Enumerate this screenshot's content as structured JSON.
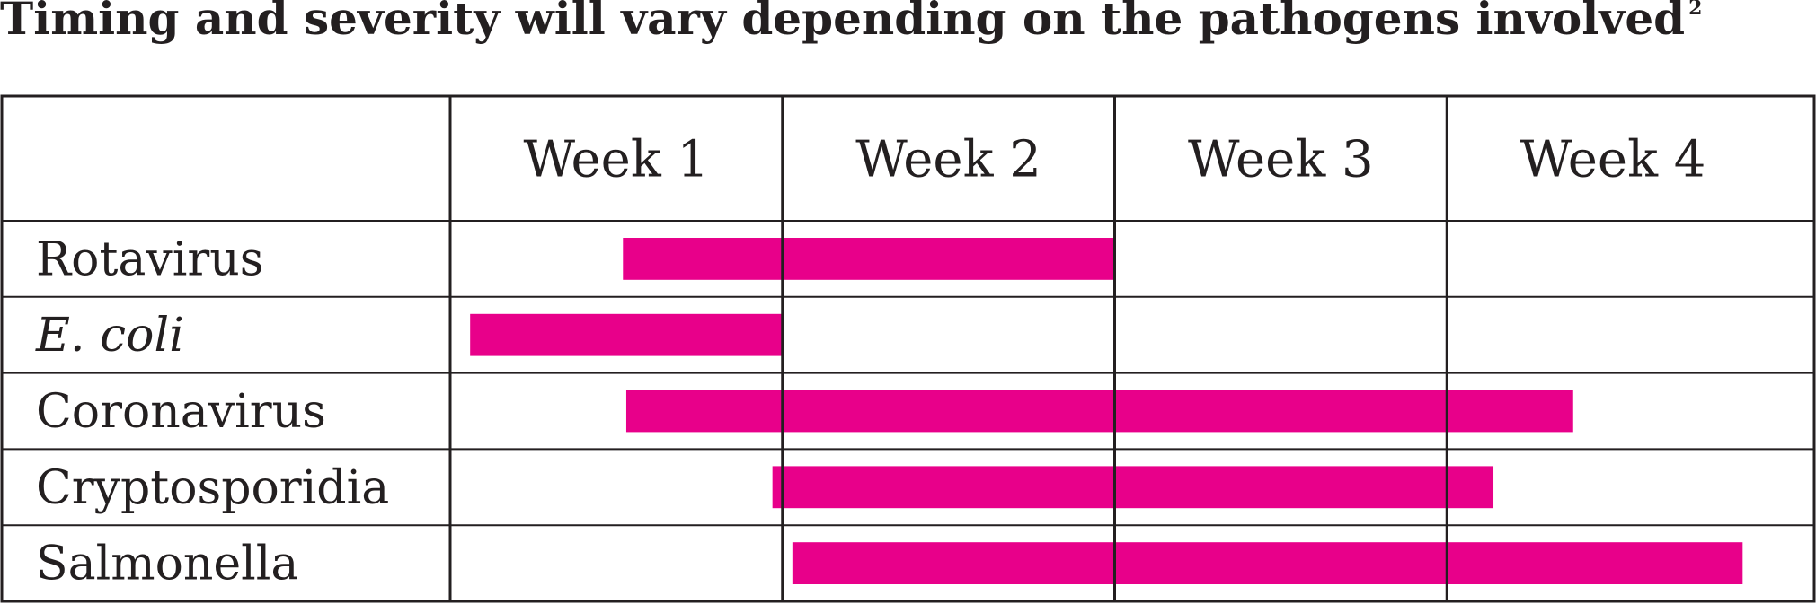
{
  "chart_data": {
    "type": "bar",
    "title": "Timing and severity will vary depending on the pathogens involved",
    "title_superscript": "2",
    "x_categories": [
      "Week 1",
      "Week 2",
      "Week 3",
      "Week 4"
    ],
    "xlim": [
      0,
      4
    ],
    "rows": [
      {
        "label": "Rotavirus",
        "italic": false,
        "start": 0.52,
        "end": 2.0
      },
      {
        "label": "E. coli",
        "italic": true,
        "start": 0.06,
        "end": 1.0
      },
      {
        "label": "Coronavirus",
        "italic": false,
        "start": 0.53,
        "end": 3.38
      },
      {
        "label": "Cryptosporidia",
        "italic": false,
        "start": 0.97,
        "end": 3.14
      },
      {
        "label": "Salmonella",
        "italic": false,
        "start": 1.03,
        "end": 3.89
      }
    ],
    "bar_color": "#e8008a",
    "grid_color": "#231f20",
    "grid": true
  }
}
